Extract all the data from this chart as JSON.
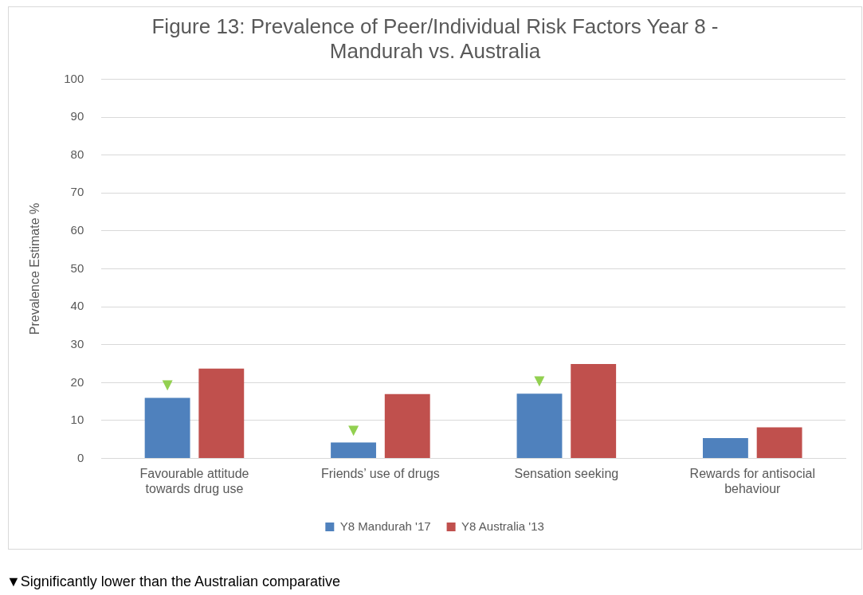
{
  "chart_data": {
    "type": "bar",
    "title": "Figure 13: Prevalence of Peer/Individual Risk Factors Year 8 - Mandurah vs. Australia",
    "ylabel": "Prevalence Estimate %",
    "categories": [
      "Favourable attitude towards drug use",
      "Friends’ use of drugs",
      "Sensation seeking",
      "Rewards for antisocial behaviour"
    ],
    "series": [
      {
        "name": "Y8 Mandurah '17",
        "color": "#4f81bd",
        "values": [
          16,
          4.2,
          17.1,
          5.4
        ],
        "value_labels": [
          "▼",
          "▼",
          "▼",
          null
        ]
      },
      {
        "name": "Y8 Australia '13",
        "color": "#c0504d",
        "values": [
          23.7,
          17,
          24.9,
          8.2
        ]
      }
    ],
    "ylim": [
      0,
      100
    ],
    "yticks": [
      0,
      10,
      20,
      30,
      40,
      50,
      60,
      70,
      80,
      90,
      100
    ],
    "grid": "y",
    "legend": "bottom",
    "annotations": [
      "▼Significantly lower than the Australian comparative"
    ]
  }
}
